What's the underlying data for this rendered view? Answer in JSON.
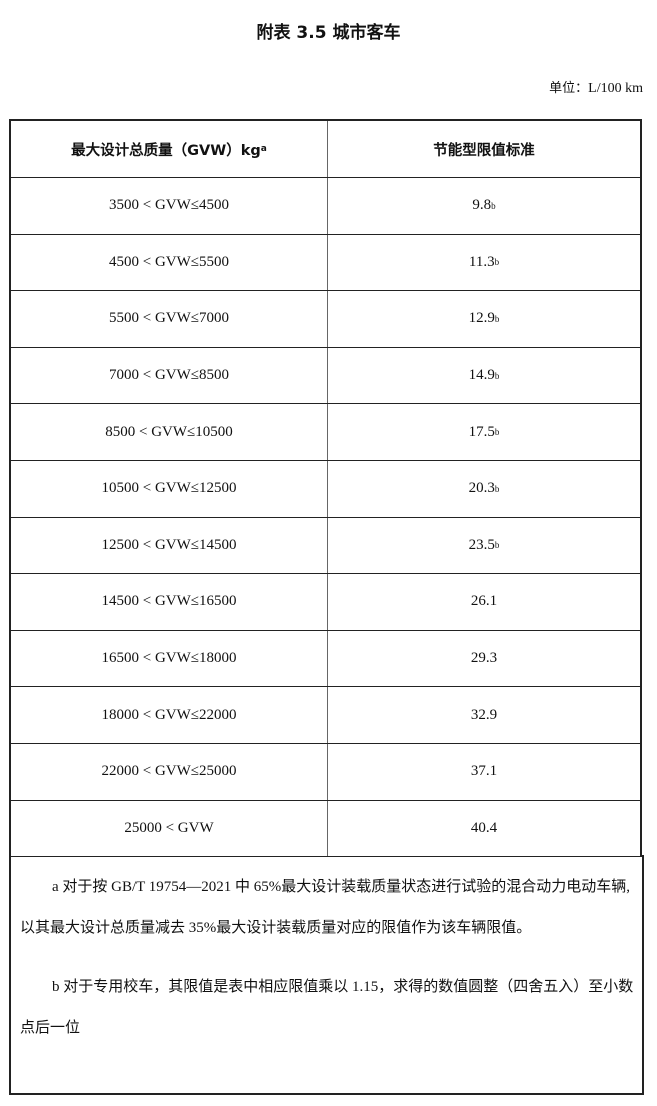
{
  "title": "附表 3.5  城市客车",
  "unit": {
    "label": "单位：",
    "value": "L/100 km"
  },
  "table": {
    "headers": [
      {
        "text": "最大设计总质量（GVW）kg",
        "sup": "a"
      },
      {
        "text": "节能型限值标准",
        "sup": ""
      }
    ],
    "rows": [
      {
        "range": "3500 < GVW≤4500",
        "value": "9.8",
        "sup": "b"
      },
      {
        "range": "4500 < GVW≤5500",
        "value": "11.3",
        "sup": "b"
      },
      {
        "range": "5500 < GVW≤7000",
        "value": "12.9",
        "sup": "b"
      },
      {
        "range": "7000 < GVW≤8500",
        "value": "14.9",
        "sup": "b"
      },
      {
        "range": "8500 < GVW≤10500",
        "value": "17.5",
        "sup": "b"
      },
      {
        "range": "10500 < GVW≤12500",
        "value": "20.3",
        "sup": "b"
      },
      {
        "range": "12500 < GVW≤14500",
        "value": "23.5",
        "sup": "b"
      },
      {
        "range": "14500 < GVW≤16500",
        "value": "26.1",
        "sup": ""
      },
      {
        "range": "16500 < GVW≤18000",
        "value": "29.3",
        "sup": ""
      },
      {
        "range": "18000 < GVW≤22000",
        "value": "32.9",
        "sup": ""
      },
      {
        "range": "22000 < GVW≤25000",
        "value": "37.1",
        "sup": ""
      },
      {
        "range": "25000 < GVW",
        "value": "40.4",
        "sup": ""
      }
    ]
  },
  "notes": [
    "a 对于按  GB/T  19754—2021 中 65%最大设计装载质量状态进行试验的混合动力电动车辆,以其最大设计总质量减去  35%最大设计装载质量对应的限值作为该车辆限值。",
    "b 对于专用校车，其限值是表中相应限值乘以 1.15，求得的数值圆整（四舍五入）至小数点后一位"
  ]
}
